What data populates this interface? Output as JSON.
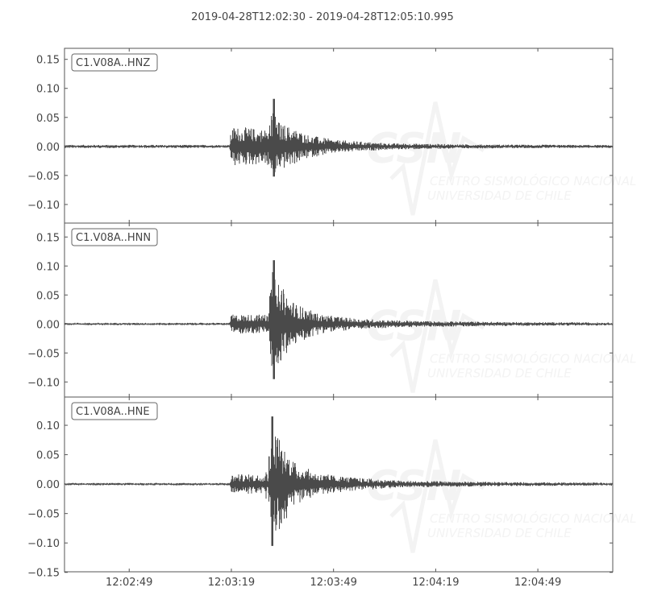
{
  "chart_data": {
    "type": "line",
    "title": "2019-04-28T12:02:30  -  2019-04-28T12:05:10.995",
    "x_start": "12:02:30",
    "x_end": "12:05:10.995",
    "x_ticks": [
      "12:02:49",
      "12:03:19",
      "12:03:49",
      "12:04:19",
      "12:04:49"
    ],
    "grid": false,
    "color": "#4a4a4a",
    "watermark": {
      "logo": "CSN",
      "line1": "CENTRO SISMOLÓGICO NACIONAL",
      "line2": "UNIVERSIDAD DE CHILE"
    },
    "traces": [
      {
        "label": "C1.V08A..HNZ",
        "ylim": [
          -0.132,
          0.169
        ],
        "y_ticks": [
          "0.15",
          "0.10",
          "0.05",
          "0.00",
          "−0.05",
          "−0.10"
        ],
        "y_tick_values": [
          0.15,
          0.1,
          0.05,
          0.0,
          -0.05,
          -0.1
        ],
        "envelope": [
          [
            "12:02:30",
            0.002
          ],
          [
            "12:03:18.5",
            0.002
          ],
          [
            "12:03:19",
            0.025
          ],
          [
            "12:03:29",
            0.022
          ],
          [
            "12:03:31",
            0.035
          ],
          [
            "12:03:36",
            0.025
          ],
          [
            "12:03:42",
            0.014
          ],
          [
            "12:03:50",
            0.008
          ],
          [
            "12:04:05",
            0.004
          ],
          [
            "12:04:30",
            0.0025
          ],
          [
            "12:05:10.995",
            0.0018
          ]
        ],
        "peak": {
          "time": "12:03:31.5",
          "max": 0.082,
          "min": -0.052
        }
      },
      {
        "label": "C1.V08A..HNN",
        "ylim": [
          -0.126,
          0.174
        ],
        "y_ticks": [
          "0.15",
          "0.10",
          "0.05",
          "0.00",
          "−0.05",
          "−0.10"
        ],
        "y_tick_values": [
          0.15,
          0.1,
          0.05,
          0.0,
          -0.05,
          -0.1
        ],
        "envelope": [
          [
            "12:02:30",
            0.0015
          ],
          [
            "12:03:18.5",
            0.0015
          ],
          [
            "12:03:19",
            0.012
          ],
          [
            "12:03:30",
            0.012
          ],
          [
            "12:03:31",
            0.07
          ],
          [
            "12:03:34",
            0.045
          ],
          [
            "12:03:38",
            0.025
          ],
          [
            "12:03:45",
            0.012
          ],
          [
            "12:03:55",
            0.007
          ],
          [
            "12:04:10",
            0.004
          ],
          [
            "12:04:40",
            0.0025
          ],
          [
            "12:05:10.995",
            0.0018
          ]
        ],
        "peak": {
          "time": "12:03:31.5",
          "max": 0.11,
          "min": -0.095
        }
      },
      {
        "label": "C1.V08A..HNE",
        "ylim": [
          -0.149,
          0.148
        ],
        "y_ticks": [
          "0.10",
          "0.05",
          "0.00",
          "−0.05",
          "−0.10",
          "−0.15"
        ],
        "y_tick_values": [
          0.1,
          0.05,
          0.0,
          -0.05,
          -0.1,
          -0.15
        ],
        "envelope": [
          [
            "12:02:30",
            0.0015
          ],
          [
            "12:03:18.5",
            0.0015
          ],
          [
            "12:03:19",
            0.012
          ],
          [
            "12:03:30",
            0.012
          ],
          [
            "12:03:31",
            0.075
          ],
          [
            "12:03:34",
            0.05
          ],
          [
            "12:03:38",
            0.025
          ],
          [
            "12:03:45",
            0.013
          ],
          [
            "12:03:55",
            0.008
          ],
          [
            "12:04:10",
            0.004
          ],
          [
            "12:04:40",
            0.0025
          ],
          [
            "12:05:10.995",
            0.0018
          ]
        ],
        "peak": {
          "time": "12:03:31",
          "max": 0.115,
          "min": -0.105
        }
      }
    ]
  }
}
